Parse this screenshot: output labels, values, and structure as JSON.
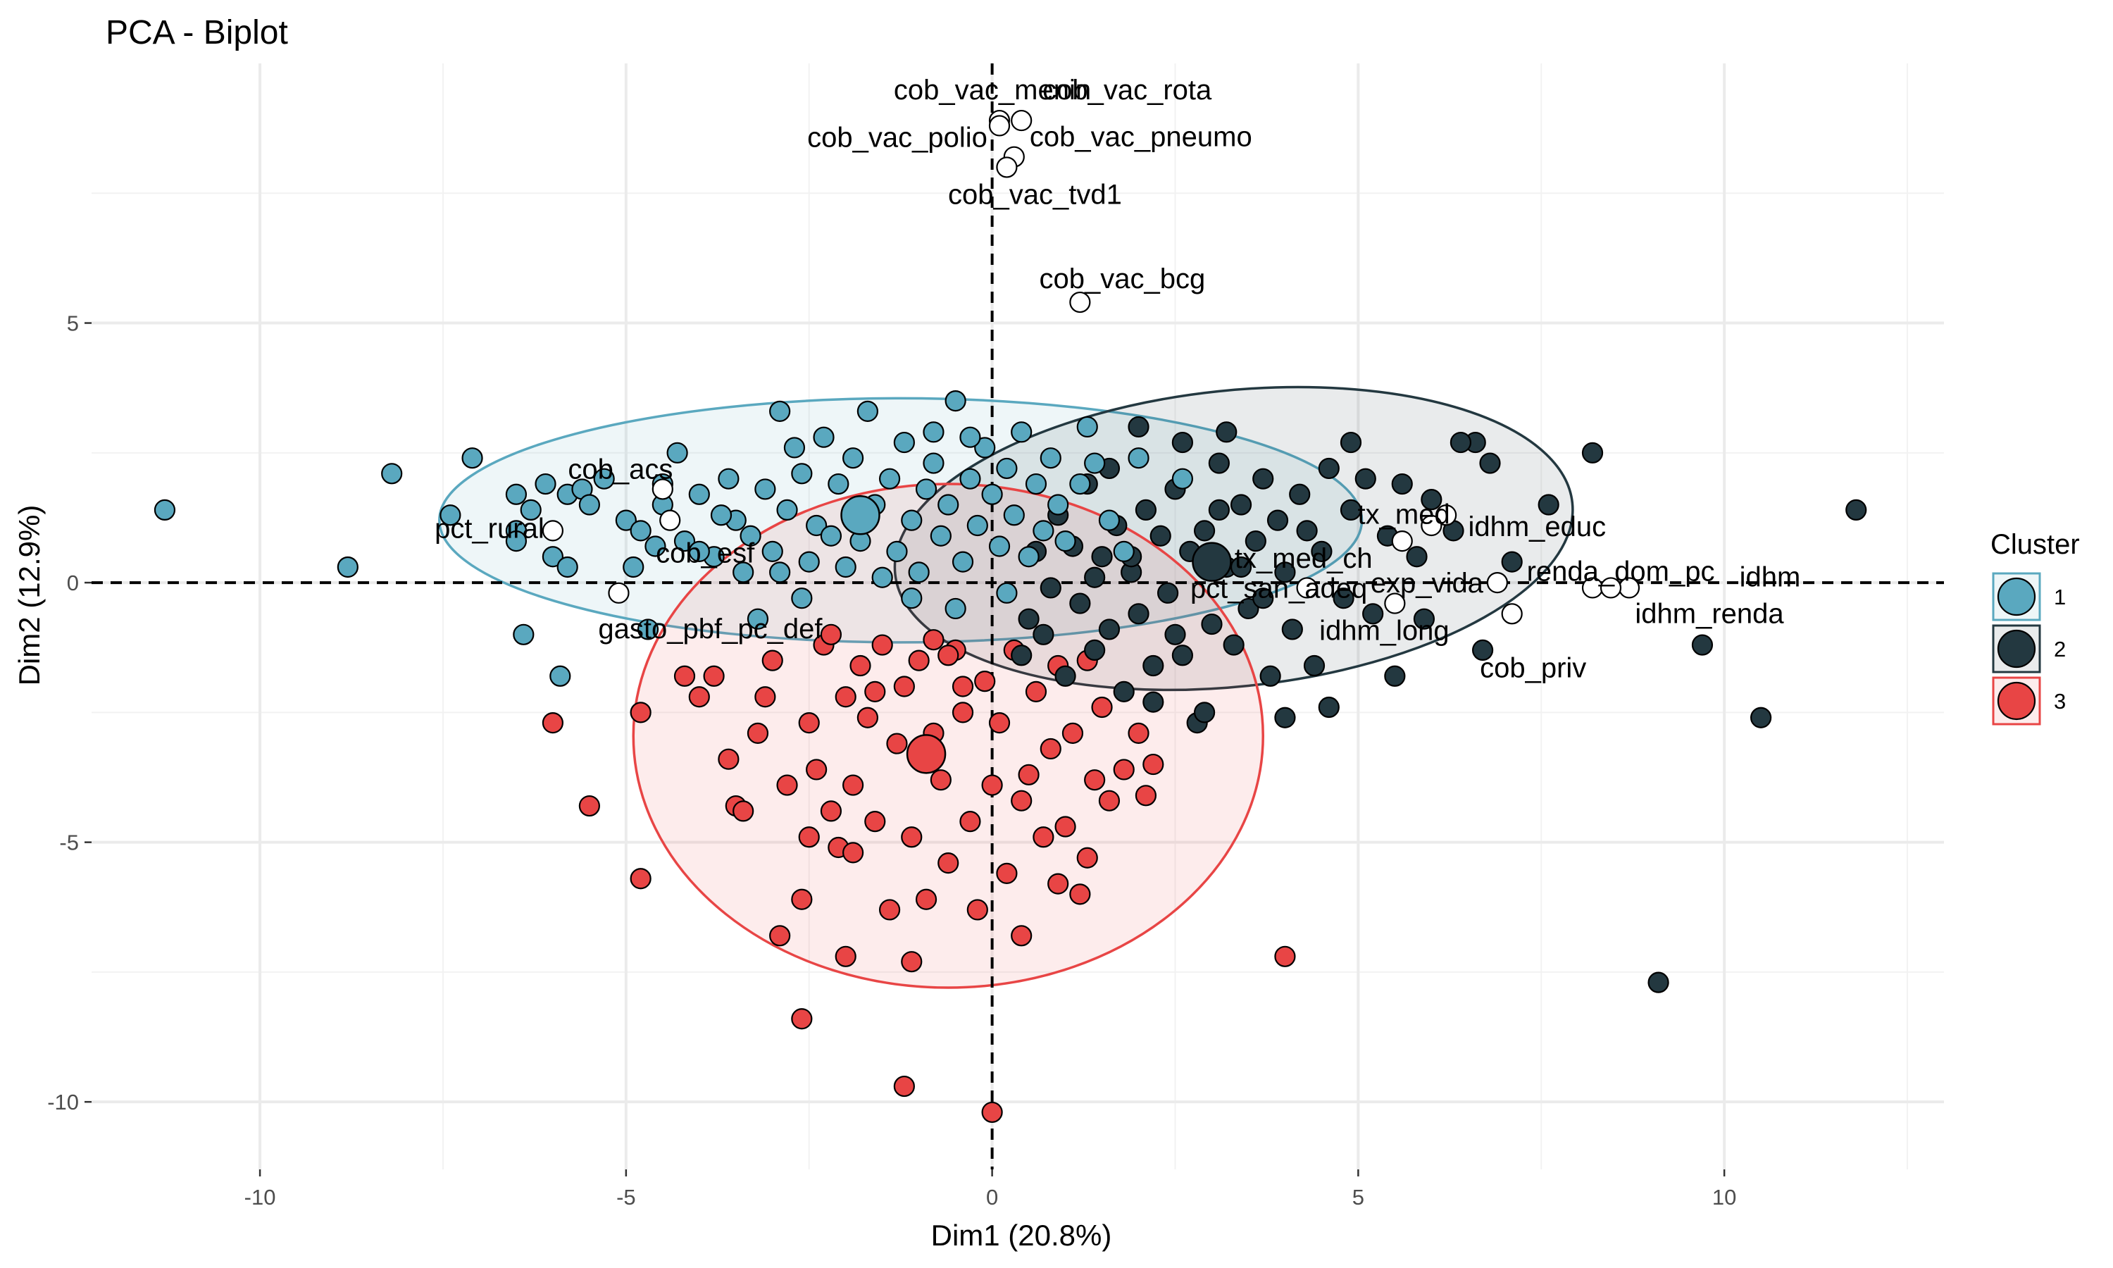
{
  "chart_data": {
    "type": "scatter",
    "title": "PCA - Biplot",
    "xlabel": "Dim1 (20.8%)",
    "ylabel": "Dim2 (12.9%)",
    "xlim": [
      -12.3,
      13.0
    ],
    "ylim": [
      -11.3,
      10.0
    ],
    "xticks": [
      -10,
      -5,
      0,
      5,
      10
    ],
    "yticks": [
      -10,
      -5,
      0,
      5
    ],
    "grid": true,
    "legend_position": "right",
    "legend_title": "Cluster",
    "series": [
      {
        "name": "1",
        "color": "#5aa8bf",
        "centroid": [
          -1.8,
          1.3
        ],
        "ellipse": {
          "cx": -1.25,
          "cy": 1.2,
          "rx": 6.3,
          "ry": 2.35,
          "angle": 0
        },
        "points": [
          [
            -11.3,
            1.4
          ],
          [
            -8.8,
            0.3
          ],
          [
            -8.2,
            2.1
          ],
          [
            -7.4,
            1.3
          ],
          [
            -7.1,
            2.4
          ],
          [
            -6.5,
            1.7
          ],
          [
            -6.5,
            1.0
          ],
          [
            -6.5,
            0.8
          ],
          [
            -6.3,
            1.4
          ],
          [
            -6.1,
            1.9
          ],
          [
            -6.0,
            0.5
          ],
          [
            -5.8,
            1.7
          ],
          [
            -5.6,
            1.8
          ],
          [
            -5.5,
            1.5
          ],
          [
            -5.3,
            2.0
          ],
          [
            -6.4,
            -1.0
          ],
          [
            -5.9,
            -1.8
          ],
          [
            -5.8,
            0.3
          ],
          [
            -5.0,
            1.2
          ],
          [
            -4.9,
            0.3
          ],
          [
            -4.8,
            1.0
          ],
          [
            -4.6,
            0.7
          ],
          [
            -4.5,
            1.9
          ],
          [
            -4.5,
            1.5
          ],
          [
            -4.3,
            2.5
          ],
          [
            -4.2,
            0.8
          ],
          [
            -4.0,
            1.7
          ],
          [
            -3.8,
            0.5
          ],
          [
            -3.6,
            2.0
          ],
          [
            -3.5,
            1.2
          ],
          [
            -3.4,
            0.2
          ],
          [
            -3.3,
            0.9
          ],
          [
            -3.1,
            1.8
          ],
          [
            -3.0,
            0.6
          ],
          [
            -2.9,
            0.2
          ],
          [
            -2.8,
            1.4
          ],
          [
            -2.6,
            2.1
          ],
          [
            -2.5,
            0.4
          ],
          [
            -2.4,
            1.1
          ],
          [
            -2.3,
            2.8
          ],
          [
            -2.1,
            1.9
          ],
          [
            -2.0,
            0.3
          ],
          [
            -1.9,
            2.4
          ],
          [
            -1.8,
            0.8
          ],
          [
            -1.7,
            3.3
          ],
          [
            -1.6,
            1.5
          ],
          [
            -1.5,
            0.1
          ],
          [
            -1.4,
            2.0
          ],
          [
            -1.3,
            0.6
          ],
          [
            -1.2,
            2.7
          ],
          [
            -1.1,
            1.2
          ],
          [
            -1.0,
            0.2
          ],
          [
            -0.9,
            1.8
          ],
          [
            -0.8,
            2.3
          ],
          [
            -0.7,
            0.9
          ],
          [
            -0.6,
            1.5
          ],
          [
            -0.5,
            3.5
          ],
          [
            -0.4,
            0.4
          ],
          [
            -0.3,
            2.0
          ],
          [
            -0.2,
            1.1
          ],
          [
            -0.1,
            2.6
          ],
          [
            0.0,
            1.7
          ],
          [
            0.1,
            0.7
          ],
          [
            0.2,
            2.2
          ],
          [
            0.3,
            1.3
          ],
          [
            0.4,
            2.9
          ],
          [
            0.5,
            0.5
          ],
          [
            0.6,
            1.9
          ],
          [
            0.7,
            1.0
          ],
          [
            0.8,
            2.4
          ],
          [
            0.9,
            1.5
          ],
          [
            1.0,
            0.8
          ],
          [
            1.2,
            1.9
          ],
          [
            1.4,
            2.3
          ],
          [
            1.6,
            1.2
          ],
          [
            1.8,
            0.6
          ],
          [
            -2.7,
            2.6
          ],
          [
            -3.7,
            1.3
          ],
          [
            -4.0,
            0.6
          ],
          [
            -2.2,
            0.9
          ],
          [
            -1.1,
            -0.3
          ],
          [
            0.2,
            -0.2
          ],
          [
            -0.5,
            -0.5
          ],
          [
            -2.6,
            -0.3
          ],
          [
            -3.2,
            -0.7
          ],
          [
            -4.7,
            -0.9
          ],
          [
            -0.8,
            2.9
          ],
          [
            -2.9,
            3.3
          ],
          [
            -0.3,
            2.8
          ],
          [
            1.3,
            3.0
          ],
          [
            2.6,
            2.0
          ],
          [
            2.0,
            2.4
          ]
        ]
      },
      {
        "name": "2",
        "color": "#233840",
        "centroid": [
          3.0,
          0.4
        ],
        "ellipse": {
          "cx": 3.3,
          "cy": 0.85,
          "rx": 4.65,
          "ry": 2.85,
          "angle": -6
        },
        "points": [
          [
            11.8,
            1.4
          ],
          [
            10.5,
            -2.6
          ],
          [
            9.7,
            -1.2
          ],
          [
            9.1,
            -7.7
          ],
          [
            8.2,
            2.5
          ],
          [
            7.6,
            1.5
          ],
          [
            6.8,
            2.3
          ],
          [
            6.6,
            2.7
          ],
          [
            6.4,
            2.7
          ],
          [
            6.3,
            1.0
          ],
          [
            6.0,
            1.6
          ],
          [
            5.8,
            0.5
          ],
          [
            5.6,
            1.9
          ],
          [
            5.4,
            0.9
          ],
          [
            5.2,
            -0.6
          ],
          [
            5.1,
            2.0
          ],
          [
            4.9,
            1.4
          ],
          [
            4.8,
            -0.3
          ],
          [
            4.6,
            2.2
          ],
          [
            4.5,
            0.6
          ],
          [
            4.4,
            -1.6
          ],
          [
            4.2,
            1.7
          ],
          [
            4.1,
            -0.9
          ],
          [
            4.0,
            0.2
          ],
          [
            3.9,
            1.2
          ],
          [
            3.8,
            -1.8
          ],
          [
            3.7,
            2.0
          ],
          [
            3.6,
            0.8
          ],
          [
            3.5,
            -0.5
          ],
          [
            3.4,
            1.5
          ],
          [
            3.3,
            -1.2
          ],
          [
            3.2,
            0.3
          ],
          [
            3.1,
            2.3
          ],
          [
            3.0,
            -0.8
          ],
          [
            2.9,
            1.0
          ],
          [
            2.8,
            -2.7
          ],
          [
            2.7,
            0.6
          ],
          [
            2.6,
            -1.4
          ],
          [
            2.5,
            1.8
          ],
          [
            2.4,
            -0.2
          ],
          [
            2.3,
            0.9
          ],
          [
            2.2,
            -1.6
          ],
          [
            2.1,
            1.4
          ],
          [
            2.0,
            -0.6
          ],
          [
            1.9,
            0.2
          ],
          [
            1.8,
            -2.1
          ],
          [
            1.7,
            1.1
          ],
          [
            1.6,
            -0.9
          ],
          [
            1.5,
            0.5
          ],
          [
            1.4,
            -1.3
          ],
          [
            1.3,
            1.9
          ],
          [
            1.2,
            -0.4
          ],
          [
            1.1,
            0.7
          ],
          [
            1.0,
            -1.8
          ],
          [
            0.9,
            1.3
          ],
          [
            0.8,
            -0.1
          ],
          [
            0.7,
            -1.0
          ],
          [
            0.6,
            0.6
          ],
          [
            0.5,
            -0.7
          ],
          [
            0.4,
            -1.4
          ],
          [
            2.6,
            2.7
          ],
          [
            3.2,
            2.9
          ],
          [
            4.9,
            2.7
          ],
          [
            6.7,
            -1.3
          ],
          [
            5.5,
            -1.8
          ],
          [
            4.6,
            -2.4
          ],
          [
            2.9,
            -2.5
          ],
          [
            1.9,
            0.5
          ],
          [
            3.7,
            -0.3
          ],
          [
            2.0,
            3.0
          ],
          [
            1.6,
            2.2
          ],
          [
            2.2,
            -2.3
          ],
          [
            4.0,
            -2.6
          ],
          [
            5.9,
            -0.7
          ],
          [
            7.1,
            0.4
          ],
          [
            4.3,
            1.0
          ],
          [
            3.1,
            1.4
          ],
          [
            2.5,
            -1.0
          ],
          [
            1.4,
            0.1
          ],
          [
            3.4,
            0.3
          ]
        ]
      },
      {
        "name": "3",
        "color": "#e84545",
        "centroid": [
          -0.9,
          -3.3
        ],
        "ellipse": {
          "cx": -0.6,
          "cy": -2.95,
          "rx": 4.3,
          "ry": 4.85,
          "angle": 0
        },
        "points": [
          [
            -6.0,
            -2.7
          ],
          [
            -5.5,
            -4.3
          ],
          [
            -4.8,
            -5.7
          ],
          [
            -4.8,
            -2.5
          ],
          [
            -4.2,
            -1.8
          ],
          [
            -4.0,
            -2.2
          ],
          [
            -3.8,
            -1.8
          ],
          [
            -3.6,
            -3.4
          ],
          [
            -3.5,
            -4.3
          ],
          [
            -3.4,
            -4.4
          ],
          [
            -3.2,
            -2.9
          ],
          [
            -3.0,
            -1.5
          ],
          [
            -2.9,
            -6.8
          ],
          [
            -2.8,
            -3.9
          ],
          [
            -2.6,
            -6.1
          ],
          [
            -2.6,
            -8.4
          ],
          [
            -2.5,
            -2.7
          ],
          [
            -2.4,
            -3.6
          ],
          [
            -2.3,
            -1.2
          ],
          [
            -2.2,
            -4.4
          ],
          [
            -2.1,
            -5.1
          ],
          [
            -2.0,
            -2.2
          ],
          [
            -2.0,
            -7.2
          ],
          [
            -1.9,
            -3.9
          ],
          [
            -1.8,
            -1.6
          ],
          [
            -1.7,
            -2.6
          ],
          [
            -1.6,
            -4.6
          ],
          [
            -1.5,
            -1.2
          ],
          [
            -1.4,
            -6.3
          ],
          [
            -1.3,
            -3.1
          ],
          [
            -1.2,
            -2.0
          ],
          [
            -1.2,
            -9.7
          ],
          [
            -1.1,
            -4.9
          ],
          [
            -1.0,
            -1.5
          ],
          [
            -0.9,
            -6.1
          ],
          [
            -0.8,
            -2.9
          ],
          [
            -0.7,
            -3.8
          ],
          [
            -0.6,
            -5.4
          ],
          [
            -0.5,
            -1.3
          ],
          [
            -0.4,
            -2.5
          ],
          [
            -0.3,
            -4.6
          ],
          [
            -0.2,
            -6.3
          ],
          [
            -0.1,
            -1.9
          ],
          [
            0.0,
            -3.9
          ],
          [
            0.1,
            -2.7
          ],
          [
            0.2,
            -5.6
          ],
          [
            0.3,
            -1.3
          ],
          [
            0.4,
            -6.8
          ],
          [
            0.5,
            -3.7
          ],
          [
            0.6,
            -2.1
          ],
          [
            0.7,
            -4.9
          ],
          [
            0.8,
            -3.2
          ],
          [
            0.9,
            -1.6
          ],
          [
            1.0,
            -4.7
          ],
          [
            1.1,
            -2.9
          ],
          [
            1.2,
            -6.0
          ],
          [
            1.3,
            -1.5
          ],
          [
            1.4,
            -3.8
          ],
          [
            1.5,
            -2.4
          ],
          [
            1.6,
            -4.2
          ],
          [
            1.8,
            -3.6
          ],
          [
            2.0,
            -2.9
          ],
          [
            2.1,
            -4.1
          ],
          [
            2.2,
            -3.5
          ],
          [
            4.0,
            -7.2
          ],
          [
            0.0,
            -10.2
          ],
          [
            -1.6,
            -2.1
          ],
          [
            -0.8,
            -1.1
          ],
          [
            -2.2,
            -1.0
          ],
          [
            -1.1,
            -7.3
          ],
          [
            0.4,
            -4.2
          ],
          [
            -0.4,
            -2.0
          ],
          [
            1.3,
            -5.3
          ],
          [
            -2.5,
            -4.9
          ],
          [
            -3.1,
            -2.2
          ],
          [
            0.9,
            -5.8
          ],
          [
            -0.6,
            -1.4
          ],
          [
            -1.9,
            -5.2
          ]
        ]
      }
    ],
    "variables": [
      {
        "name": "cob_vac_menin",
        "x": 0.1,
        "y": 8.9
      },
      {
        "name": "cob_vac_rota",
        "x": 0.4,
        "y": 8.9
      },
      {
        "name": "cob_vac_polio",
        "x": 0.1,
        "y": 8.8
      },
      {
        "name": "cob_vac_pneumo",
        "x": 0.3,
        "y": 8.2
      },
      {
        "name": "cob_vac_tvd1",
        "x": 0.2,
        "y": 8.0
      },
      {
        "name": "cob_vac_bcg",
        "x": 1.2,
        "y": 5.4
      },
      {
        "name": "cob_acs",
        "x": -4.5,
        "y": 1.8
      },
      {
        "name": "pct_rural",
        "x": -6.0,
        "y": 1.0
      },
      {
        "name": "cob_esf",
        "x": -4.4,
        "y": 1.2
      },
      {
        "name": "gasto_pbf_pc_def",
        "x": -5.1,
        "y": -0.2
      },
      {
        "name": "tx_med",
        "x": 6.2,
        "y": 1.3
      },
      {
        "name": "idhm_educ",
        "x": 6.0,
        "y": 1.1
      },
      {
        "name": "tx_med_ch",
        "x": 5.6,
        "y": 0.8
      },
      {
        "name": "pct_san_adeq",
        "x": 4.3,
        "y": -0.1
      },
      {
        "name": "exp_vida",
        "x": 6.9,
        "y": 0.0
      },
      {
        "name": "renda_dom_pc",
        "x": 8.2,
        "y": -0.1
      },
      {
        "name": "idhm",
        "x": 8.7,
        "y": -0.1
      },
      {
        "name": "idhm_renda",
        "x": 8.45,
        "y": -0.1
      },
      {
        "name": "idhm_long",
        "x": 5.5,
        "y": -0.4
      },
      {
        "name": "cob_priv",
        "x": 7.1,
        "y": -0.6
      }
    ],
    "annotations": [
      {
        "text": "cob_vac_menin",
        "for": "cob_vac_menin"
      },
      {
        "text": "cob_vac_rota",
        "for": "cob_vac_rota"
      },
      {
        "text": "cob_vac_polio",
        "for": "cob_vac_polio"
      },
      {
        "text": "cob_vac_pneumo",
        "for": "cob_vac_pneumo"
      },
      {
        "text": "cob_vac_tvd1",
        "for": "cob_vac_tvd1"
      },
      {
        "text": "cob_vac_bcg",
        "for": "cob_vac_bcg"
      },
      {
        "text": "cob_acs",
        "for": "cob_acs"
      },
      {
        "text": "pct_rural",
        "for": "pct_rural"
      },
      {
        "text": "cob_esf",
        "for": "cob_esf"
      },
      {
        "text": "gasto_pbf_pc_def",
        "for": "gasto_pbf_pc_def"
      },
      {
        "text": "tx_med",
        "for": "tx_med"
      },
      {
        "text": "idhm_educ",
        "for": "idhm_educ"
      },
      {
        "text": "tx_med_ch",
        "for": "tx_med_ch"
      },
      {
        "text": "pct_san_adeq",
        "for": "pct_san_adeq"
      },
      {
        "text": "exp_vida",
        "for": "exp_vida"
      },
      {
        "text": "renda_dom_pc",
        "for": "renda_dom_pc"
      },
      {
        "text": "idhm",
        "for": "idhm"
      },
      {
        "text": "idhm_renda",
        "for": "idhm_renda"
      },
      {
        "text": "idhm_long",
        "for": "idhm_long"
      },
      {
        "text": "cob_priv",
        "for": "cob_priv"
      }
    ]
  }
}
